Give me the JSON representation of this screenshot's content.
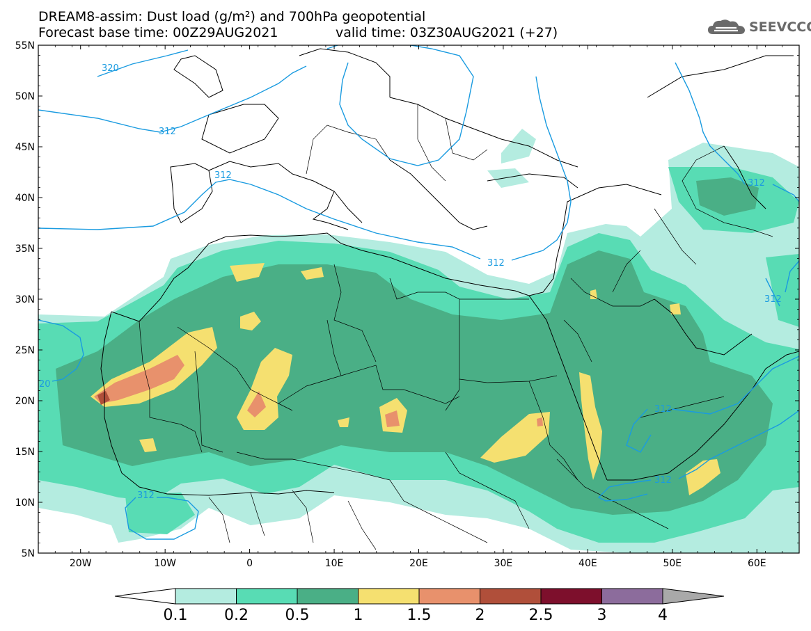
{
  "title": {
    "line1": "DREAM8-assim: Dust load (g/m²) and 700hPa geopotential",
    "line2_left": "Forecast base time: 00Z29AUG2021",
    "line2_right": "valid time: 03Z30AUG2021 (+27)"
  },
  "logo": {
    "text": "SEEVCCC",
    "icon": "cloud-icon"
  },
  "map": {
    "lat_ticks": [
      "55N",
      "50N",
      "45N",
      "40N",
      "35N",
      "30N",
      "25N",
      "20N",
      "15N",
      "10N",
      "5N"
    ],
    "lon_ticks": [
      "20W",
      "10W",
      "0",
      "10E",
      "20E",
      "30E",
      "40E",
      "50E",
      "60E"
    ],
    "contour_labels": [
      {
        "id": "320a",
        "text": "320"
      },
      {
        "id": "312a",
        "text": "312"
      },
      {
        "id": "312b",
        "text": "312"
      },
      {
        "id": "312c",
        "text": "312"
      },
      {
        "id": "312d",
        "text": "312"
      },
      {
        "id": "312e",
        "text": "312"
      },
      {
        "id": "312f",
        "text": "312"
      },
      {
        "id": "312g",
        "text": "312"
      },
      {
        "id": "312h",
        "text": "312"
      },
      {
        "id": "20a",
        "text": "20"
      }
    ],
    "contour_color": "#1a9be0"
  },
  "colorbar": {
    "labels": [
      "0.1",
      "0.2",
      "0.5",
      "1",
      "1.5",
      "2",
      "2.5",
      "3",
      "4"
    ],
    "colors": [
      "#ffffff",
      "#b4ece0",
      "#58dcb4",
      "#4aaf86",
      "#f5e070",
      "#e8916c",
      "#b04f3a",
      "#7d0f2c",
      "#8c6c9c",
      "#a9a9a9"
    ]
  }
}
